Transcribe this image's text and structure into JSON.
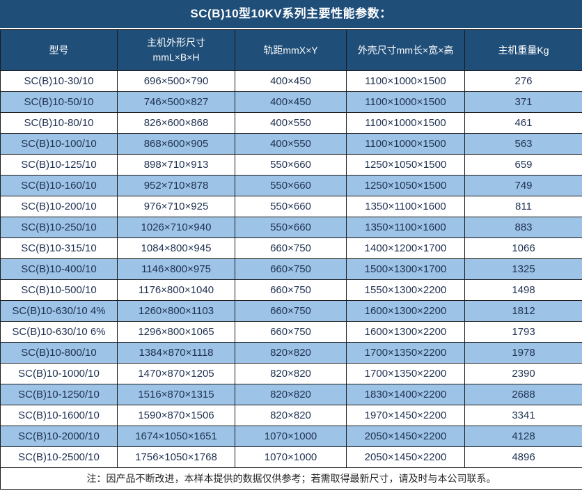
{
  "title": "SC(B)10型10KV系列主要性能参数：",
  "colors": {
    "header_bg": "#1F4E79",
    "row_alt_bg": "#9DC3E6",
    "header_text": "#ffffff",
    "cell_text": "#1F3150",
    "border": "#1b1b1b"
  },
  "table": {
    "headers": [
      {
        "label": "型号"
      },
      {
        "label": "主机外形尺寸",
        "label2": "mmL×B×H"
      },
      {
        "label": "轨距mmX×Y"
      },
      {
        "label": "外壳尺寸mm长×宽×高"
      },
      {
        "label": "主机重量Kg"
      }
    ],
    "column_keys": [
      "model",
      "main-dimensions",
      "rail-gauge",
      "shell-dimensions",
      "weight"
    ],
    "rows": [
      [
        "SC(B)10-30/10",
        "696×500×790",
        "400×450",
        "1100×1000×1500",
        "276"
      ],
      [
        "SC(B)10-50/10",
        "746×500×827",
        "400×450",
        "1100×1000×1500",
        "371"
      ],
      [
        "SC(B)10-80/10",
        "826×600×868",
        "400×550",
        "1100×1000×1500",
        "461"
      ],
      [
        "SC(B)10-100/10",
        "868×600×905",
        "400×550",
        "1100×1000×1500",
        "563"
      ],
      [
        "SC(B)10-125/10",
        "898×710×913",
        "550×660",
        "1250×1050×1500",
        "659"
      ],
      [
        "SC(B)10-160/10",
        "952×710×878",
        "550×660",
        "1250×1050×1500",
        "749"
      ],
      [
        "SC(B)10-200/10",
        "976×710×925",
        "550×660",
        "1350×1100×1600",
        "811"
      ],
      [
        "SC(B)10-250/10",
        "1026×710×940",
        "550×660",
        "1350×1100×1600",
        "883"
      ],
      [
        "SC(B)10-315/10",
        "1084×800×945",
        "660×750",
        "1400×1200×1700",
        "1066"
      ],
      [
        "SC(B)10-400/10",
        "1146×800×975",
        "660×750",
        "1500×1300×1700",
        "1325"
      ],
      [
        "SC(B)10-500/10",
        "1176×800×1040",
        "660×750",
        "1550×1300×2200",
        "1498"
      ],
      [
        "SC(B)10-630/10 4%",
        "1260×800×1103",
        "660×750",
        "1600×1300×2200",
        "1812"
      ],
      [
        "SC(B)10-630/10 6%",
        "1296×800×1065",
        "660×750",
        "1600×1300×2200",
        "1793"
      ],
      [
        "SC(B)10-800/10",
        "1384×870×1118",
        "820×820",
        "1700×1350×2200",
        "1978"
      ],
      [
        "SC(B)10-1000/10",
        "1470×870×1205",
        "820×820",
        "1700×1350×2200",
        "2390"
      ],
      [
        "SC(B)10-1250/10",
        "1516×870×1315",
        "820×820",
        "1830×1400×2200",
        "2688"
      ],
      [
        "SC(B)10-1600/10",
        "1590×870×1506",
        "820×820",
        "1970×1450×2200",
        "3341"
      ],
      [
        "SC(B)10-2000/10",
        "1674×1050×1651",
        "1070×1000",
        "2050×1450×2200",
        "4128"
      ],
      [
        "SC(B)10-2500/10",
        "1756×1050×1768",
        "1070×1000",
        "2050×1450×2200",
        "4896"
      ]
    ],
    "note": "注：因产品不断改进，本样本提供的数据仅供参考；若需取得最新尺寸，请及时与本公司联系。"
  }
}
